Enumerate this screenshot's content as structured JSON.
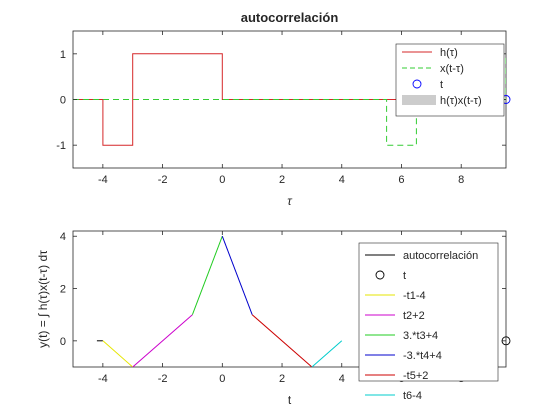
{
  "chart_data": [
    {
      "type": "line",
      "title": "autocorrelación",
      "xlabel": "τ",
      "ylabel": "",
      "xlim": [
        -5,
        9.5
      ],
      "ylim": [
        -1.5,
        1.5
      ],
      "xticks": [
        -4,
        -2,
        0,
        2,
        4,
        6,
        8
      ],
      "xtick_labels": [
        "-4",
        "-2",
        "0",
        "2",
        "4",
        "6",
        "8"
      ],
      "yticks": [
        -1,
        0,
        1
      ],
      "ytick_labels": [
        "-1",
        "0",
        "1"
      ],
      "legend_position": "top-right",
      "series": [
        {
          "name": "h(τ)",
          "color": "#d62728",
          "style": "solid",
          "x": [
            -5,
            -4,
            -4,
            -3,
            -3,
            0,
            0,
            9.5
          ],
          "y": [
            0,
            0,
            -1,
            -1,
            1,
            1,
            0,
            0
          ]
        },
        {
          "name": "x(t-τ)",
          "color": "#33cc33",
          "style": "dashed",
          "x": [
            -5,
            5.5,
            5.5,
            6.5,
            6.5,
            9.5,
            9.5
          ],
          "y": [
            0,
            0,
            -1,
            -1,
            0,
            0,
            1
          ]
        },
        {
          "name": "t",
          "color": "#0000ff",
          "style": "marker",
          "x": [
            9.5
          ],
          "y": [
            0
          ]
        },
        {
          "name": "h(τ)x(t-τ)",
          "color": "#cccccc",
          "style": "area",
          "x": [],
          "y": []
        }
      ]
    },
    {
      "type": "line",
      "title": "",
      "xlabel": "t",
      "ylabel": "y(t) = ∫ h(τ)x(t-τ) dτ",
      "xlim": [
        -5,
        9.5
      ],
      "ylim": [
        -1,
        4.2
      ],
      "xticks": [
        -4,
        -2,
        0,
        2,
        4,
        6,
        8
      ],
      "xtick_labels": [
        "-4",
        "-2",
        "0",
        "2",
        "4",
        "6",
        "8"
      ],
      "yticks": [
        0,
        2,
        4
      ],
      "ytick_labels": [
        "0",
        "2",
        "4"
      ],
      "legend_position": "top-right",
      "series": [
        {
          "name": "autocorrelación",
          "color": "#000000",
          "style": "solid",
          "x": [
            -4.2,
            -4
          ],
          "y": [
            0,
            0
          ]
        },
        {
          "name": "t",
          "color": "#000000",
          "style": "marker",
          "x": [
            9.5
          ],
          "y": [
            0
          ]
        },
        {
          "name": "-t1-4",
          "color": "#e6e600",
          "style": "solid",
          "x": [
            -4,
            -3
          ],
          "y": [
            0,
            -1
          ]
        },
        {
          "name": "t2+2",
          "color": "#cc00cc",
          "style": "solid",
          "x": [
            -3,
            -1
          ],
          "y": [
            -1,
            1
          ]
        },
        {
          "name": "3.*t3+4",
          "color": "#22cc22",
          "style": "solid",
          "x": [
            -1,
            0
          ],
          "y": [
            1,
            4
          ]
        },
        {
          "name": "-3.*t4+4",
          "color": "#0000cc",
          "style": "solid",
          "x": [
            0,
            1
          ],
          "y": [
            4,
            1
          ]
        },
        {
          "name": "-t5+2",
          "color": "#cc0000",
          "style": "solid",
          "x": [
            1,
            3
          ],
          "y": [
            1,
            -1
          ]
        },
        {
          "name": "t6-4",
          "color": "#00cccc",
          "style": "solid",
          "x": [
            3,
            4
          ],
          "y": [
            -1,
            0
          ]
        }
      ]
    }
  ]
}
